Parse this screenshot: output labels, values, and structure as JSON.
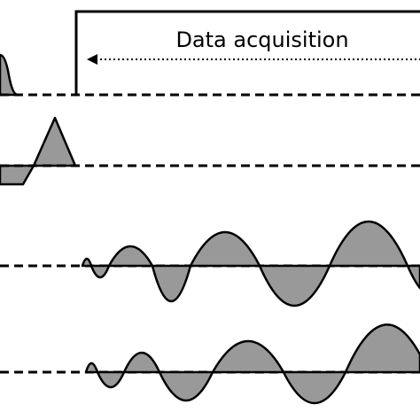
{
  "label": "Data acquisition"
}
